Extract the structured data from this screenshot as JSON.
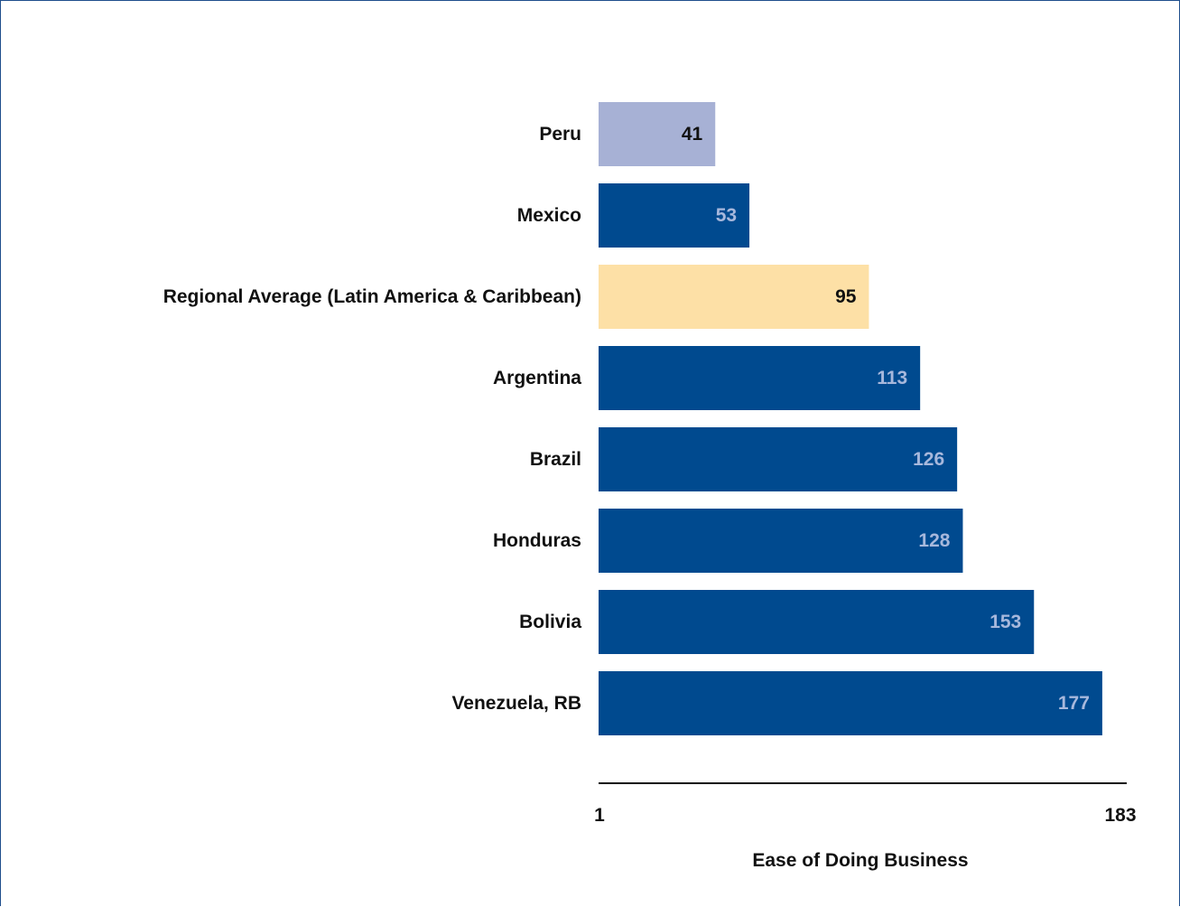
{
  "chart_data": {
    "type": "bar",
    "orientation": "horizontal",
    "categories": [
      "Peru",
      "Mexico",
      "Regional Average (Latin America & Caribbean)",
      "Argentina",
      "Brazil",
      "Honduras",
      "Bolivia",
      "Venezuela, RB"
    ],
    "values": [
      41,
      53,
      95,
      113,
      126,
      128,
      153,
      177
    ],
    "bar_colors": [
      "#a7b1d5",
      "#004a8f",
      "#fde0a6",
      "#004a8f",
      "#004a8f",
      "#004a8f",
      "#004a8f",
      "#004a8f"
    ],
    "label_colors": [
      "#111111",
      "#a7b8dc",
      "#111111",
      "#a7b8dc",
      "#a7b8dc",
      "#a7b8dc",
      "#a7b8dc",
      "#a7b8dc"
    ],
    "xlim": [
      1,
      183
    ],
    "xticks": [
      "1",
      "183"
    ],
    "xlabel": "Ease of Doing Business",
    "ylabel": "",
    "title": "",
    "grid": false,
    "legend": "none"
  },
  "frame_color": "#1f4e8c",
  "axis_color": "#111111"
}
